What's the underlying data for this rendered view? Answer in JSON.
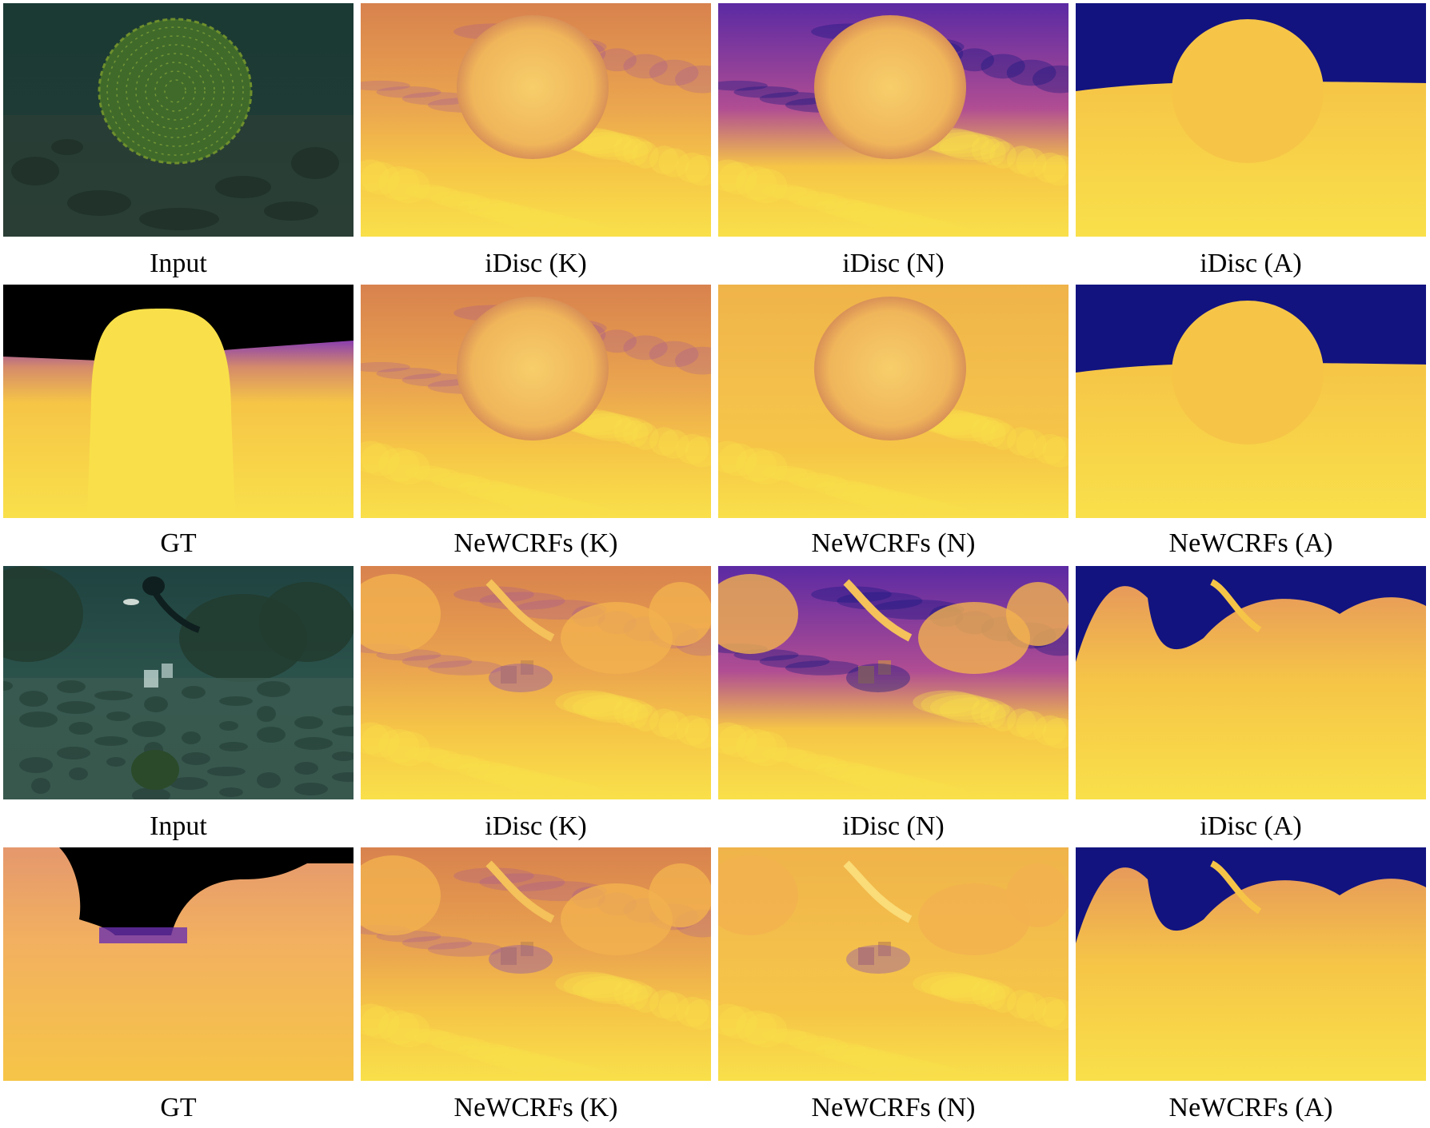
{
  "figure": {
    "rows": [
      {
        "scene": "coral-boulder",
        "panels": [
          {
            "label": "Input",
            "kind": "input-photo"
          },
          {
            "label": "iDisc (K)",
            "kind": "depth-noisy"
          },
          {
            "label": "iDisc (N)",
            "kind": "depth-noisy-dark"
          },
          {
            "label": "iDisc (A)",
            "kind": "depth-clean"
          }
        ]
      },
      {
        "scene": "coral-boulder",
        "panels": [
          {
            "label": "GT",
            "kind": "depth-gt"
          },
          {
            "label": "NeWCRFs (K)",
            "kind": "depth-smooth"
          },
          {
            "label": "NeWCRFs (N)",
            "kind": "depth-smooth-bright"
          },
          {
            "label": "NeWCRFs (A)",
            "kind": "depth-clean"
          }
        ]
      },
      {
        "scene": "reef-diver",
        "panels": [
          {
            "label": "Input",
            "kind": "input-photo"
          },
          {
            "label": "iDisc (K)",
            "kind": "depth-noisy"
          },
          {
            "label": "iDisc (N)",
            "kind": "depth-noisy-dark"
          },
          {
            "label": "iDisc (A)",
            "kind": "depth-clean"
          }
        ]
      },
      {
        "scene": "reef-diver",
        "panels": [
          {
            "label": "GT",
            "kind": "depth-gt"
          },
          {
            "label": "NeWCRFs (K)",
            "kind": "depth-smooth"
          },
          {
            "label": "NeWCRFs (N)",
            "kind": "depth-smooth-bright"
          },
          {
            "label": "NeWCRFs (A)",
            "kind": "depth-clean"
          }
        ]
      }
    ],
    "colormap": {
      "far": "#12137f",
      "mid": "#8a3fb0",
      "near": "#f6c547",
      "nearest": "#f9e04a",
      "sky_gt": "#000000"
    },
    "photo_colors": {
      "water": "#1f3b35",
      "seabed": "#2a3f36",
      "coral": "#3f6a2a"
    }
  }
}
